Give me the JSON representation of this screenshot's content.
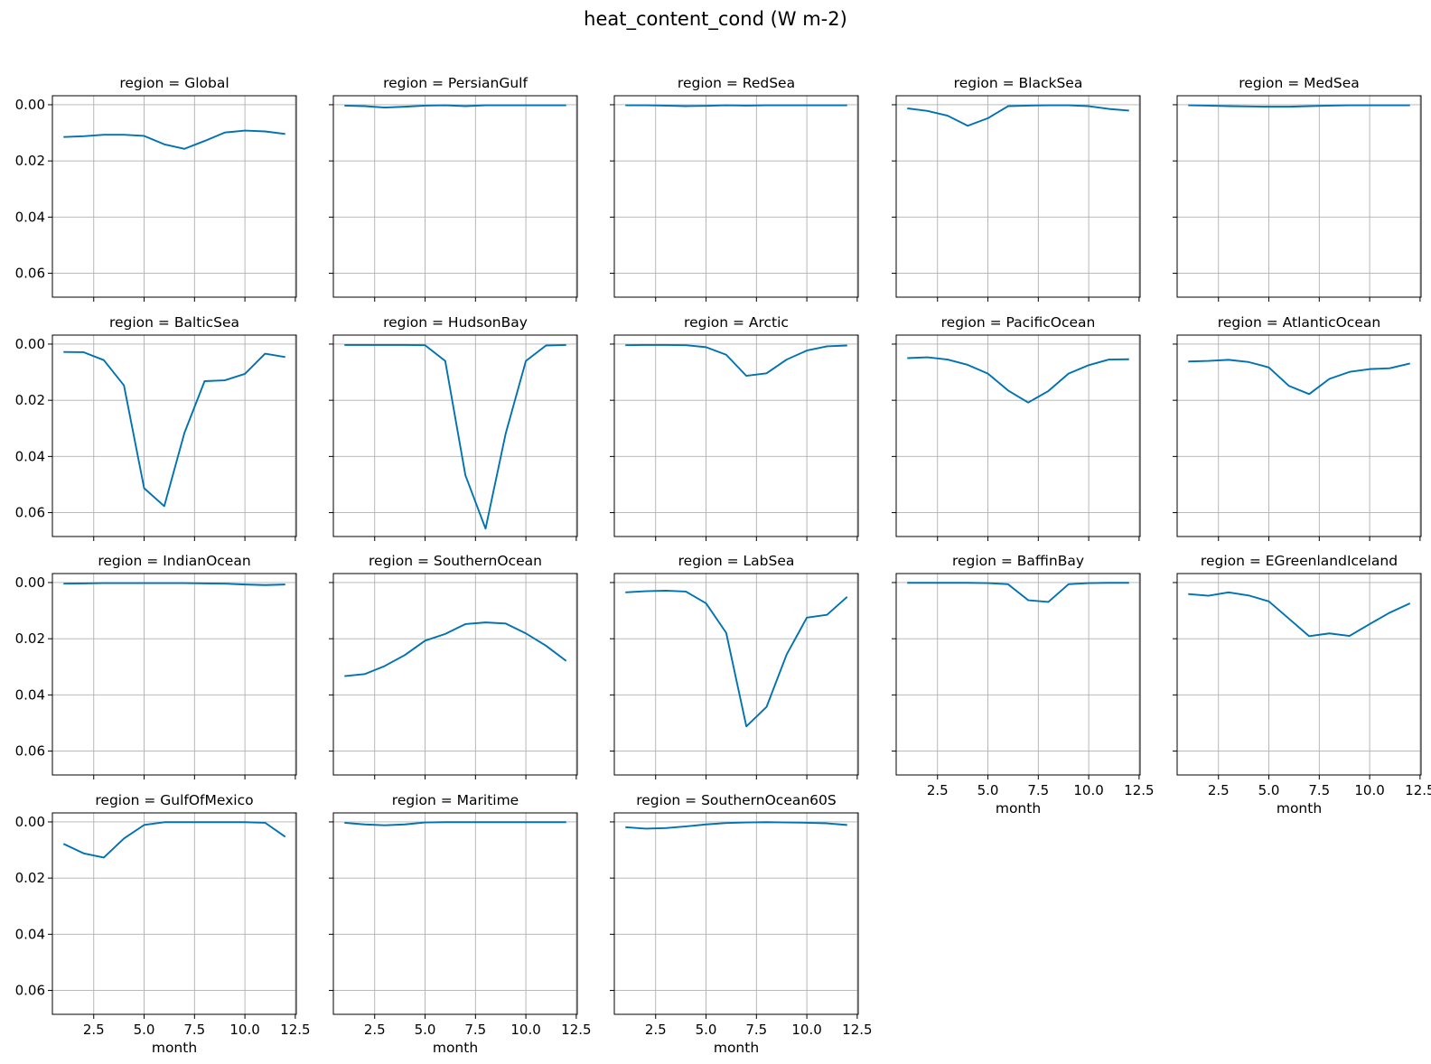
{
  "figure": {
    "title": "heat_content_cond (W m-2)"
  },
  "chart_data": {
    "type": "line",
    "facet_layout": {
      "rows": 4,
      "cols": 5
    },
    "shared": {
      "x": [
        1,
        2,
        3,
        4,
        5,
        6,
        7,
        8,
        9,
        10,
        11,
        12
      ],
      "xlim": [
        0.45,
        12.55
      ],
      "ylim": [
        0.0685,
        -0.0032
      ],
      "y_inverted": true,
      "x_ticks": [
        2.5,
        5.0,
        7.5,
        10.0,
        12.5
      ],
      "x_tick_labels": [
        "2.5",
        "5.0",
        "7.5",
        "10.0",
        "12.5"
      ],
      "y_ticks": [
        0.0,
        0.02,
        0.04,
        0.06
      ],
      "y_tick_labels": [
        "0.00",
        "0.02",
        "0.04",
        "0.06"
      ],
      "xlabel": "month",
      "grid": true,
      "line_color": "#0072b2"
    },
    "panels": [
      {
        "title": "region = Global",
        "values": [
          0.0115,
          0.0112,
          0.0107,
          0.0107,
          0.0111,
          0.0141,
          0.0157,
          0.0129,
          0.0099,
          0.0092,
          0.0095,
          0.0104
        ]
      },
      {
        "title": "region = PersianGulf",
        "values": [
          0.0003,
          0.0005,
          0.001,
          0.0007,
          0.0003,
          0.0002,
          0.0005,
          0.0002,
          0.0002,
          0.0002,
          0.0002,
          0.0002
        ]
      },
      {
        "title": "region = RedSea",
        "values": [
          0.0002,
          0.0002,
          0.0003,
          0.0005,
          0.0004,
          0.0002,
          0.0003,
          0.0002,
          0.0002,
          0.0002,
          0.0002,
          0.0002
        ]
      },
      {
        "title": "region = BlackSea",
        "values": [
          0.0013,
          0.0022,
          0.0039,
          0.0075,
          0.0048,
          0.0005,
          0.0003,
          0.0002,
          0.0002,
          0.0005,
          0.0015,
          0.0021
        ]
      },
      {
        "title": "region = MedSea",
        "values": [
          0.0002,
          0.0003,
          0.0005,
          0.0006,
          0.0007,
          0.0007,
          0.0005,
          0.0003,
          0.0002,
          0.0002,
          0.0002,
          0.0002
        ]
      },
      {
        "title": "region = BalticSea",
        "values": [
          0.0028,
          0.0029,
          0.0057,
          0.0147,
          0.0513,
          0.0577,
          0.0316,
          0.0132,
          0.0129,
          0.0106,
          0.0034,
          0.0046
        ]
      },
      {
        "title": "region = HudsonBay",
        "values": [
          0.0003,
          0.0003,
          0.0003,
          0.0003,
          0.0004,
          0.006,
          0.0467,
          0.0657,
          0.0318,
          0.006,
          0.0005,
          0.0003
        ]
      },
      {
        "title": "region = Arctic",
        "values": [
          0.0004,
          0.0003,
          0.0003,
          0.0004,
          0.0011,
          0.0038,
          0.0113,
          0.0104,
          0.0055,
          0.0023,
          0.0008,
          0.0005
        ]
      },
      {
        "title": "region = PacificOcean",
        "values": [
          0.005,
          0.0047,
          0.0055,
          0.0074,
          0.0105,
          0.0165,
          0.0208,
          0.0167,
          0.0105,
          0.0075,
          0.0055,
          0.0054
        ]
      },
      {
        "title": "region = AtlanticOcean",
        "values": [
          0.0062,
          0.006,
          0.0056,
          0.0064,
          0.0083,
          0.0149,
          0.0178,
          0.0124,
          0.0099,
          0.0089,
          0.0086,
          0.0069
        ]
      },
      {
        "title": "region = IndianOcean",
        "values": [
          0.0004,
          0.0003,
          0.0002,
          0.0002,
          0.0002,
          0.0002,
          0.0002,
          0.0003,
          0.0004,
          0.0007,
          0.0009,
          0.0007
        ]
      },
      {
        "title": "region = SouthernOcean",
        "values": [
          0.0333,
          0.0326,
          0.0297,
          0.0258,
          0.0207,
          0.0183,
          0.0148,
          0.0142,
          0.0146,
          0.0181,
          0.0225,
          0.0279
        ]
      },
      {
        "title": "region = LabSea",
        "values": [
          0.0035,
          0.0031,
          0.0029,
          0.0032,
          0.0074,
          0.0179,
          0.0512,
          0.0443,
          0.0256,
          0.0125,
          0.0115,
          0.0051
        ]
      },
      {
        "title": "region = BaffinBay",
        "values": [
          0.0001,
          0.0001,
          0.0001,
          0.0001,
          0.0002,
          0.0006,
          0.0063,
          0.0069,
          0.0006,
          0.0002,
          0.0001,
          0.0001
        ]
      },
      {
        "title": "region = EGreenlandIceland",
        "values": [
          0.0041,
          0.0047,
          0.0035,
          0.0046,
          0.0067,
          0.0129,
          0.0191,
          0.0181,
          0.019,
          0.0148,
          0.0107,
          0.0074
        ]
      },
      {
        "title": "region = GulfOfMexico",
        "values": [
          0.0078,
          0.0112,
          0.0127,
          0.0059,
          0.0011,
          0.0001,
          0.0001,
          0.0001,
          0.0001,
          0.0001,
          0.0003,
          0.0053
        ]
      },
      {
        "title": "region = Maritime",
        "values": [
          0.0003,
          0.0009,
          0.0012,
          0.0009,
          0.0002,
          0.0001,
          0.0001,
          0.0001,
          0.0001,
          0.0001,
          0.0001,
          0.0001
        ]
      },
      {
        "title": "region = SouthernOcean60S",
        "values": [
          0.0019,
          0.0024,
          0.0022,
          0.0016,
          0.0009,
          0.0004,
          0.0002,
          0.0001,
          0.0002,
          0.0003,
          0.0005,
          0.0011
        ]
      }
    ]
  }
}
